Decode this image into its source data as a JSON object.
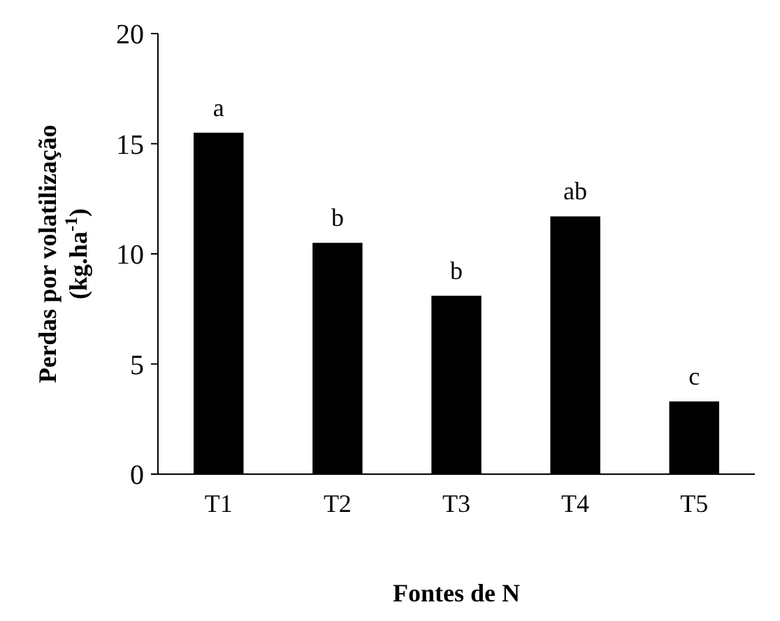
{
  "chart_data": {
    "type": "bar",
    "categories": [
      "T1",
      "T2",
      "T3",
      "T4",
      "T5"
    ],
    "values": [
      15.5,
      10.5,
      8.1,
      11.7,
      3.3
    ],
    "color": "#000000",
    "ylim": [
      0,
      20
    ],
    "yticks": [
      0,
      5,
      10,
      15,
      20
    ],
    "grid": false,
    "xlabel": "Fontes de N",
    "ylabel": "Perdas por volatilização (kg.ha$^{-1}$)",
    "annotations": [
      {
        "text": "a",
        "x": "T1",
        "y": 15.5
      },
      {
        "text": "b",
        "x": "T2",
        "y": 10.5
      },
      {
        "text": "b",
        "x": "T3",
        "y": 8.1
      },
      {
        "text": "ab",
        "x": "T4",
        "y": 11.7
      },
      {
        "text": "c",
        "x": "T5",
        "y": 3.3
      }
    ]
  }
}
